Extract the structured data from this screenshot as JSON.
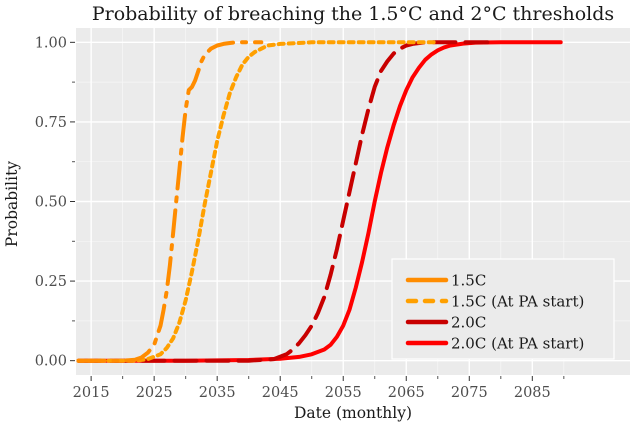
{
  "chart_data": {
    "type": "line",
    "title": "Probability of breaching the 1.5°C and 2°C thresholds",
    "xlabel": "Date (monthly)",
    "ylabel": "Probability",
    "xlim": [
      2012.6,
      2100.5
    ],
    "ylim": [
      -0.045,
      1.045
    ],
    "x_ticks": [
      2015,
      2025,
      2035,
      2045,
      2055,
      2065,
      2075,
      2085
    ],
    "x_tick_labels": [
      "2015",
      "2025",
      "2035",
      "2045",
      "2055",
      "2065",
      "2075",
      "2085"
    ],
    "x_minor_ticks": [
      2020,
      2030,
      2040,
      2050,
      2060,
      2070,
      2080,
      2090
    ],
    "y_ticks": [
      0.0,
      0.25,
      0.5,
      0.75,
      1.0
    ],
    "y_tick_labels": [
      "0.00",
      "0.25",
      "0.50",
      "0.75",
      "1.00"
    ],
    "y_minor_ticks": [
      0.125,
      0.375,
      0.625,
      0.875
    ],
    "grid": true,
    "background": "#ebebeb",
    "legend_position": "bottom-right",
    "series": [
      {
        "name": "1.5C",
        "color": "#ff8c00",
        "style": "dashdot",
        "x": [
          2013,
          2020,
          2022,
          2023,
          2024,
          2025,
          2025.5,
          2026,
          2026.5,
          2027,
          2027.5,
          2028,
          2028.5,
          2029,
          2029.5,
          2030,
          2030.5,
          2031,
          2031.5,
          2032,
          2032.5,
          2033,
          2034,
          2035,
          2036,
          2037,
          2038,
          2040,
          2042
        ],
        "y": [
          0.0,
          0.0,
          0.003,
          0.01,
          0.025,
          0.05,
          0.08,
          0.11,
          0.16,
          0.22,
          0.3,
          0.4,
          0.5,
          0.6,
          0.7,
          0.79,
          0.85,
          0.86,
          0.88,
          0.91,
          0.94,
          0.96,
          0.98,
          0.99,
          0.995,
          0.998,
          1.0,
          1.0,
          1.0
        ]
      },
      {
        "name": "1.5C (At PA start)",
        "color": "#ffa000",
        "style": "dotted",
        "x": [
          2013,
          2022,
          2024,
          2026,
          2027,
          2028,
          2029,
          2030,
          2031,
          2032,
          2033,
          2034,
          2035,
          2036,
          2037,
          2038,
          2039,
          2040,
          2041,
          2042,
          2043,
          2045,
          2050,
          2060,
          2070
        ],
        "y": [
          0.0,
          0.0,
          0.005,
          0.02,
          0.04,
          0.07,
          0.12,
          0.19,
          0.28,
          0.38,
          0.49,
          0.59,
          0.69,
          0.77,
          0.84,
          0.89,
          0.93,
          0.955,
          0.97,
          0.98,
          0.99,
          0.995,
          1.0,
          1.0,
          1.0
        ]
      },
      {
        "name": "2.0C",
        "color": "#c80000",
        "style": "dashed",
        "x": [
          2013,
          2040,
          2044,
          2046,
          2047,
          2048,
          2049,
          2050,
          2051,
          2052,
          2053,
          2054,
          2055,
          2056,
          2057,
          2058,
          2059,
          2060,
          2061,
          2062,
          2063,
          2064,
          2065,
          2066,
          2068,
          2070,
          2078
        ],
        "y": [
          0.0,
          0.0,
          0.005,
          0.02,
          0.035,
          0.055,
          0.08,
          0.11,
          0.15,
          0.2,
          0.27,
          0.35,
          0.44,
          0.53,
          0.62,
          0.71,
          0.79,
          0.86,
          0.91,
          0.94,
          0.965,
          0.98,
          0.99,
          0.995,
          1.0,
          1.0,
          1.0
        ]
      },
      {
        "name": "2.0C (At PA start)",
        "color": "#ff0000",
        "style": "solid",
        "x": [
          2013,
          2030,
          2040,
          2045,
          2048,
          2050,
          2052,
          2053,
          2054,
          2055,
          2056,
          2057,
          2058,
          2059,
          2060,
          2061,
          2062,
          2063,
          2064,
          2065,
          2066,
          2067,
          2068,
          2069,
          2070,
          2071,
          2072,
          2074,
          2076,
          2080,
          2089.5
        ],
        "y": [
          0.0,
          0.0,
          0.002,
          0.006,
          0.012,
          0.02,
          0.035,
          0.05,
          0.075,
          0.11,
          0.16,
          0.23,
          0.31,
          0.4,
          0.5,
          0.59,
          0.67,
          0.74,
          0.8,
          0.85,
          0.89,
          0.92,
          0.945,
          0.962,
          0.975,
          0.984,
          0.99,
          0.996,
          0.999,
          1.0,
          1.0
        ]
      }
    ],
    "legend": [
      {
        "label": "1.5C",
        "color": "#ff8c00",
        "swatch": "solid"
      },
      {
        "label": "1.5C (At PA start)",
        "color": "#ffa000",
        "swatch": "dotted"
      },
      {
        "label": "2.0C",
        "color": "#c80000",
        "swatch": "solid"
      },
      {
        "label": "2.0C (At PA start)",
        "color": "#ff0000",
        "swatch": "solid"
      }
    ]
  }
}
